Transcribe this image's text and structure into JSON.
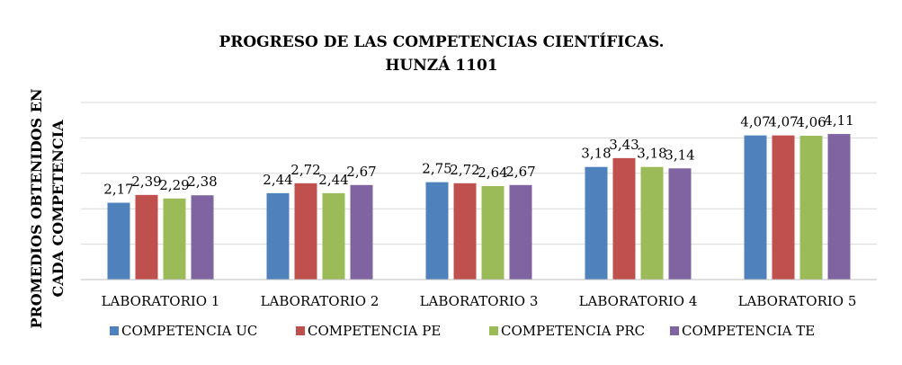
{
  "chart_data": {
    "type": "bar",
    "title": [
      "PROGRESO DE LAS COMPETENCIAS CIENTÍFICAS.",
      "HUNZÁ 1101"
    ],
    "ylabel": [
      "PROMEDIOS OBTENIDOS EN",
      "CADA COMPETENCIA"
    ],
    "xlabel": "",
    "categories": [
      "LABORATORIO 1",
      "LABORATORIO 2",
      "LABORATORIO 3",
      "LABORATORIO 4",
      "LABORATORIO 5"
    ],
    "series": [
      {
        "name": "COMPETENCIA UC",
        "color": "#4F81BD",
        "values": [
          2.17,
          2.44,
          2.75,
          3.18,
          4.07
        ],
        "labels": [
          "2,17",
          "2,44",
          "2,75",
          "3,18",
          "4,07"
        ]
      },
      {
        "name": "COMPETENCIA PE",
        "color": "#C0504D",
        "values": [
          2.39,
          2.72,
          2.72,
          3.43,
          4.07
        ],
        "labels": [
          "2,39",
          "2,72",
          "2,72",
          "3,43",
          "4,07"
        ]
      },
      {
        "name": "COMPETENCIA PRC",
        "color": "#9BBB59",
        "values": [
          2.29,
          2.44,
          2.64,
          3.18,
          4.06
        ],
        "labels": [
          "2,29",
          "2,44",
          "2,64",
          "3,18",
          "4,06"
        ]
      },
      {
        "name": "COMPETENCIA TE",
        "color": "#8064A2",
        "values": [
          2.38,
          2.67,
          2.67,
          3.14,
          4.11
        ],
        "labels": [
          "2,38",
          "2,67",
          "2,67",
          "3,14",
          "4,11"
        ]
      }
    ],
    "ylim": [
      0,
      5
    ],
    "y_gridlines": [
      1,
      2,
      3,
      4,
      5
    ],
    "y_tick_labels_visible": false,
    "grid": true,
    "legend_position": "bottom",
    "gridline_color": "#D9D9D9"
  }
}
